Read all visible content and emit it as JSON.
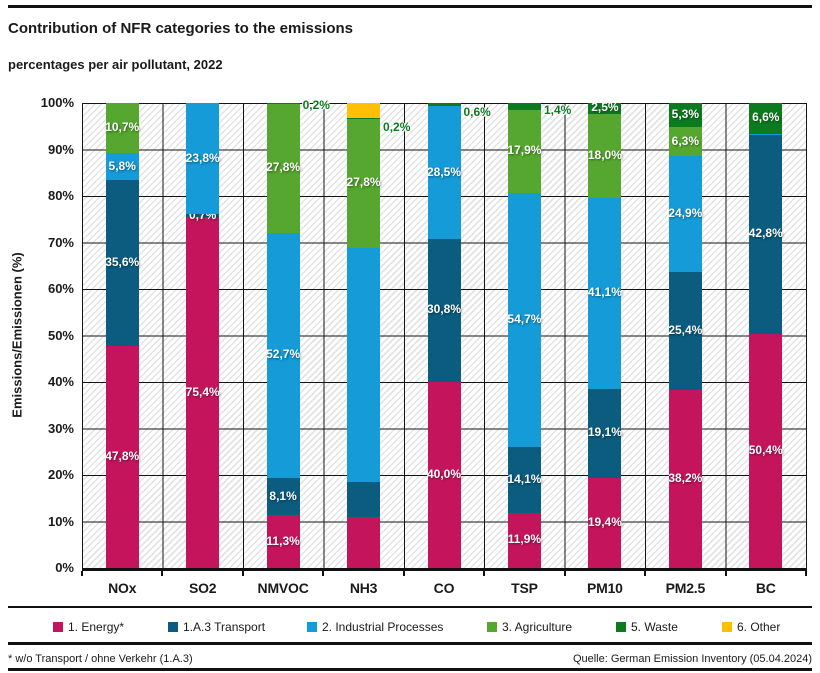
{
  "header": {
    "title": "Contribution of NFR categories to the emissions",
    "subtitle": "percentages per air pollutant, 2022"
  },
  "chart_data": {
    "type": "bar",
    "stacked": true,
    "title": "Contribution of NFR categories to the emissions",
    "subtitle": "percentages per air pollutant, 2022",
    "ylabel": "Emissions/Emissionen (%)",
    "xlabel": "",
    "ylim": [
      0,
      100
    ],
    "ytick_step": 10,
    "ytick_labels": [
      "0%",
      "10%",
      "20%",
      "30%",
      "40%",
      "50%",
      "60%",
      "70%",
      "80%",
      "90%",
      "100%"
    ],
    "grid": true,
    "legend_position": "bottom",
    "categories": [
      "NOx",
      "SO2",
      "NMVOC",
      "NH3",
      "CO",
      "TSP",
      "PM10",
      "PM2.5",
      "BC"
    ],
    "series": [
      {
        "name": "1. Energy*",
        "color": "#C4155C",
        "values": [
          47.8,
          75.4,
          11.3,
          11.0,
          40.0,
          11.9,
          19.4,
          38.2,
          50.4
        ],
        "labels": [
          "47,8%",
          "75,4%",
          "11,3%",
          "",
          "40,0%",
          "11,9%",
          "19,4%",
          "38,2%",
          "50,4%"
        ]
      },
      {
        "name": "1.A.3 Transport",
        "color": "#0B5C7F",
        "values": [
          35.6,
          0.7,
          8.1,
          7.5,
          30.8,
          14.1,
          19.1,
          25.4,
          42.8
        ],
        "labels": [
          "35,6%",
          "0,7%",
          "8,1%",
          "",
          "30,8%",
          "14,1%",
          "19,1%",
          "25,4%",
          "42,8%"
        ]
      },
      {
        "name": "2. Industrial Processes",
        "color": "#149BD8",
        "values": [
          5.8,
          23.8,
          52.7,
          50.3,
          28.5,
          54.7,
          41.1,
          24.9,
          0.2
        ],
        "labels": [
          "5,8%",
          "23,8%",
          "52,7%",
          "",
          "28,5%",
          "54,7%",
          "41,1%",
          "24,9%",
          ""
        ]
      },
      {
        "name": "3. Agriculture",
        "color": "#56A72F",
        "values": [
          10.7,
          0,
          27.8,
          27.8,
          0,
          17.9,
          18.0,
          6.3,
          0
        ],
        "labels": [
          "10,7%",
          "",
          "27,8%",
          "27,8%",
          "",
          "17,9%",
          "18,0%",
          "6,3%",
          ""
        ]
      },
      {
        "name": "5. Waste",
        "color": "#0C7A1F",
        "values": [
          0,
          0,
          0.2,
          0.2,
          0.6,
          1.4,
          2.5,
          5.3,
          6.6
        ],
        "labels": [
          "",
          "",
          "0,2%",
          "0,2%",
          "0,6%",
          "1,4%",
          "2,5%",
          "5,3%",
          "6,6%"
        ],
        "label_outside": [
          false,
          false,
          true,
          true,
          true,
          true,
          false,
          false,
          false
        ],
        "label_dy": [
          0,
          0,
          3,
          10,
          8,
          5,
          0,
          0,
          0
        ]
      },
      {
        "name": "6. Other",
        "color": "#FFC003",
        "values": [
          0,
          0,
          0,
          3.2,
          0,
          0,
          0,
          0,
          0
        ],
        "labels": [
          "",
          "",
          "",
          "",
          "",
          "",
          "",
          "",
          ""
        ]
      }
    ]
  },
  "legend": {
    "items": [
      "1. Energy*",
      "1.A.3 Transport",
      "2. Industrial Processes",
      "3. Agriculture",
      "5. Waste",
      "6. Other"
    ]
  },
  "footer": {
    "note": "* w/o Transport / ohne Verkehr (1.A.3)",
    "source": "Quelle: German Emission Inventory (05.04.2024)"
  }
}
